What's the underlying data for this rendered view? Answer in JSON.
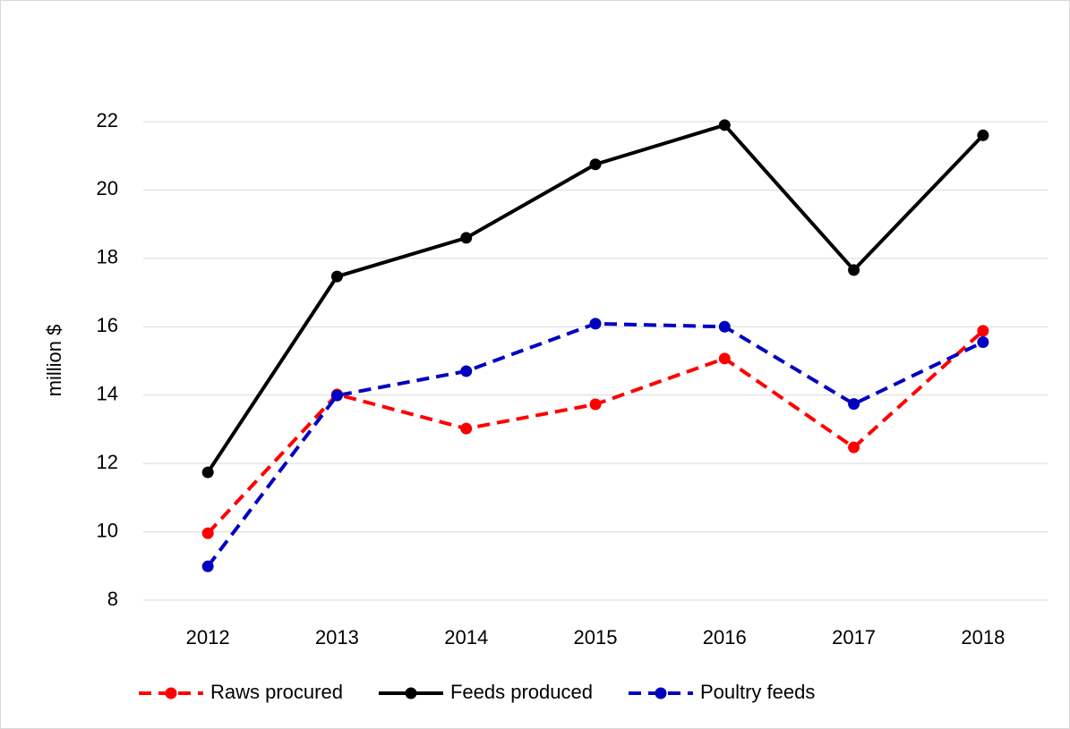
{
  "chart_data": {
    "type": "line",
    "y_label": "million $",
    "categories": [
      "2012",
      "2013",
      "2014",
      "2015",
      "2016",
      "2017",
      "2018"
    ],
    "series": [
      {
        "name": "Raws procured",
        "color": "#ff0000",
        "style": "dashed",
        "values": [
          9.96,
          14.02,
          13.02,
          13.73,
          15.07,
          12.47,
          15.88
        ]
      },
      {
        "name": "Feeds produced",
        "color": "#000000",
        "style": "solid",
        "values": [
          11.74,
          17.47,
          18.6,
          20.75,
          21.9,
          17.66,
          21.6
        ]
      },
      {
        "name": "Poultry feeds",
        "color": "#0000c0",
        "style": "dashed",
        "values": [
          8.99,
          13.99,
          14.7,
          16.09,
          16.0,
          13.74,
          15.55
        ]
      }
    ],
    "ylim": [
      8,
      22
    ],
    "yticks": [
      8,
      10,
      12,
      14,
      16,
      18,
      20,
      22
    ],
    "grid": true,
    "legend": "bottom"
  }
}
